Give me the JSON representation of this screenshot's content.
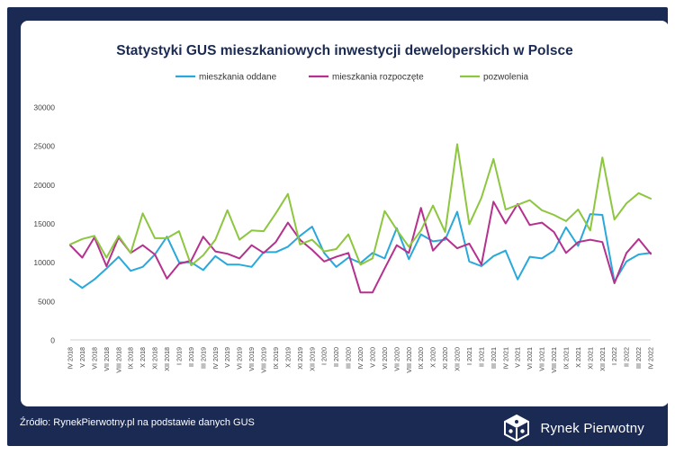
{
  "footer": {
    "source": "Źródło: RynekPierwotny.pl na podstawie danych GUS",
    "brand": "Rynek Pierwotny"
  },
  "chart_data": {
    "type": "line",
    "title": "Statystyki GUS mieszkaniowych inwestycji deweloperskich w Polsce",
    "xlabel": "",
    "ylabel": "",
    "ylim": [
      0,
      30000
    ],
    "yticks": [
      0,
      5000,
      10000,
      15000,
      20000,
      25000,
      30000
    ],
    "ytick_labels": [
      "0",
      "5000",
      "10000",
      "15000",
      "20000",
      "25000",
      "30000"
    ],
    "grid": false,
    "legend_position": "top-center",
    "categories": [
      "IV 2018",
      "V 2018",
      "VI 2018",
      "VII 2018",
      "VIII 2018",
      "IX 2018",
      "X 2018",
      "XI 2018",
      "XII 2018",
      "I 2019",
      "II 2019",
      "III 2019",
      "IV 2019",
      "V 2019",
      "VI 2019",
      "VII 2019",
      "VIII 2019",
      "IX 2019",
      "X 2019",
      "XI 2019",
      "XII 2019",
      "I 2020",
      "II 2020",
      "III 2020",
      "IV 2020",
      "V 2020",
      "VI 2020",
      "VII 2020",
      "VIII 2020",
      "IX 2020",
      "X 2020",
      "XI 2020",
      "XII 2020",
      "I 2021",
      "II 2021",
      "III 2021",
      "IV 2021",
      "V 2021",
      "VI 2021",
      "VII 2021",
      "VIII 2021",
      "IX 2021",
      "X 2021",
      "XI 2021",
      "XII 2021",
      "I 2022",
      "II 2022",
      "III 2022",
      "IV 2022"
    ],
    "series": [
      {
        "name": "mieszkania oddane",
        "color": "#29a8db",
        "values": [
          7800,
          6700,
          7800,
          9200,
          10700,
          8900,
          9400,
          11000,
          13300,
          10000,
          10000,
          9000,
          10800,
          9700,
          9700,
          9400,
          11300,
          11300,
          12000,
          13400,
          14600,
          11200,
          9400,
          10600,
          9900,
          11200,
          10500,
          14400,
          10400,
          13600,
          12700,
          12900,
          16500,
          10100,
          9500,
          10800,
          11500,
          7800,
          10700,
          10500,
          11500,
          14500,
          12100,
          16200,
          16100,
          7500,
          10100,
          11000,
          11200
        ]
      },
      {
        "name": "mieszkania rozpoczęte",
        "color": "#b5318e",
        "values": [
          12200,
          10600,
          13200,
          9500,
          13200,
          11200,
          12200,
          11000,
          7900,
          9800,
          10200,
          13300,
          11400,
          11100,
          10500,
          12200,
          11200,
          12600,
          15100,
          12900,
          11600,
          10100,
          10700,
          11200,
          6100,
          6100,
          9200,
          12200,
          11200,
          17000,
          11500,
          13200,
          11800,
          12400,
          9700,
          17800,
          15000,
          17500,
          14800,
          15100,
          13900,
          11200,
          12600,
          12900,
          12600,
          7300,
          11200,
          13000,
          11100
        ]
      },
      {
        "name": "pozwolenia",
        "color": "#8dc63f",
        "values": [
          12300,
          13000,
          13400,
          10600,
          13400,
          11200,
          16300,
          13100,
          13100,
          14000,
          9600,
          10900,
          12900,
          16700,
          12900,
          14100,
          14000,
          16300,
          18800,
          12300,
          12900,
          11400,
          11700,
          13600,
          9700,
          10500,
          16600,
          14200,
          12000,
          14100,
          17300,
          13900,
          25200,
          14900,
          18300,
          23300,
          16800,
          17400,
          18000,
          16700,
          16100,
          15300,
          16800,
          14100,
          23500,
          15500,
          17600,
          18900,
          18200
        ]
      }
    ]
  }
}
